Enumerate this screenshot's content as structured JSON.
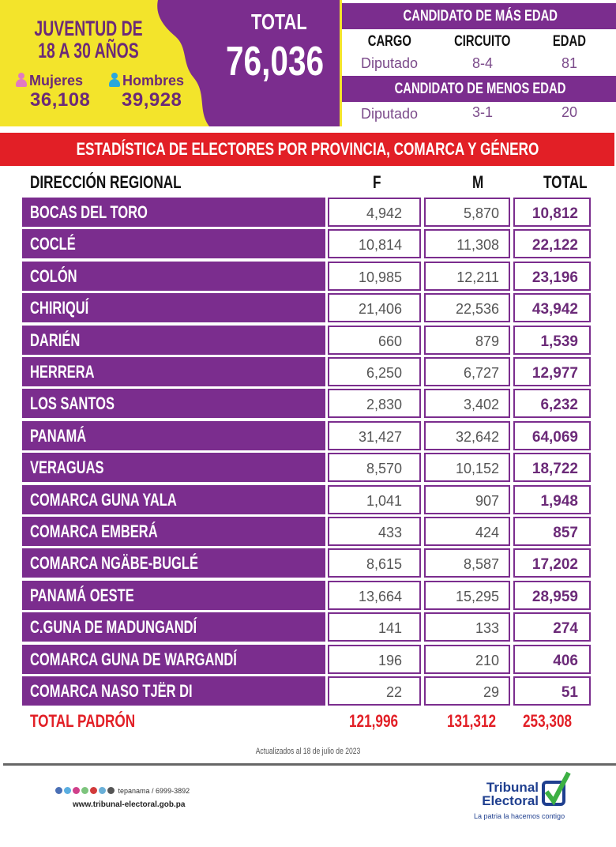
{
  "hero": {
    "title_line1": "JUVENTUD DE",
    "title_line2": "18 A 30 AÑOS",
    "women_label": "Mujeres",
    "women_value": "36,108",
    "men_label": "Hombres",
    "men_value": "39,928",
    "total_label": "TOTAL",
    "total_value": "76,036"
  },
  "candidates": {
    "oldest_title": "CANDIDATO DE MÁS EDAD",
    "youngest_title": "CANDIDATO DE MENOS EDAD",
    "headers": [
      "CARGO",
      "CIRCUITO",
      "EDAD"
    ],
    "oldest": [
      "Diputado",
      "8-4",
      "81"
    ],
    "youngest": [
      "Diputado",
      "3-1",
      "20"
    ]
  },
  "banner": "ESTADÍSTICA DE ELECTORES POR PROVINCIA, COMARCA  Y GÉNERO",
  "table": {
    "headers": [
      "DIRECCIÓN REGIONAL",
      "F",
      "M",
      "TOTAL"
    ],
    "rows": [
      [
        "BOCAS DEL TORO",
        "4,942",
        "5,870",
        "10,812"
      ],
      [
        "COCLÉ",
        "10,814",
        "11,308",
        "22,122"
      ],
      [
        "COLÓN",
        "10,985",
        "12,211",
        "23,196"
      ],
      [
        "CHIRIQUÍ",
        "21,406",
        "22,536",
        "43,942"
      ],
      [
        "DARIÉN",
        "660",
        "879",
        "1,539"
      ],
      [
        "HERRERA",
        "6,250",
        "6,727",
        "12,977"
      ],
      [
        "LOS SANTOS",
        "2,830",
        "3,402",
        "6,232"
      ],
      [
        "PANAMÁ",
        "31,427",
        "32,642",
        "64,069"
      ],
      [
        "VERAGUAS",
        "8,570",
        "10,152",
        "18,722"
      ],
      [
        "COMARCA GUNA YALA",
        "1,041",
        "907",
        "1,948"
      ],
      [
        "COMARCA EMBERÁ",
        "433",
        "424",
        "857"
      ],
      [
        "COMARCA NGÄBE-BUGLÉ",
        "8,615",
        "8,587",
        "17,202"
      ],
      [
        "PANAMÁ OESTE",
        "13,664",
        "15,295",
        "28,959"
      ],
      [
        "C.GUNA DE MADUNGANDÍ",
        "141",
        "133",
        "274"
      ],
      [
        "COMARCA GUNA DE WARGANDÍ",
        "196",
        "210",
        "406"
      ],
      [
        "COMARCA NASO TJËR DI",
        "22",
        "29",
        "51"
      ]
    ],
    "total": [
      "TOTAL PADRÓN",
      "121,996",
      "131,312",
      "253,308"
    ]
  },
  "updated": "Actualizados al 18 de julio de 2023",
  "footer": {
    "social": "tepanama / 6999-3892",
    "website": "www.tribunal-electoral.gob.pa",
    "logo_line1": "Tribunal",
    "logo_line2": "Electoral",
    "tagline": "La patria la hacemos contigo"
  },
  "colors": {
    "purple": "#7b2d8e",
    "yellow": "#f3e42b",
    "red": "#e21f26"
  }
}
